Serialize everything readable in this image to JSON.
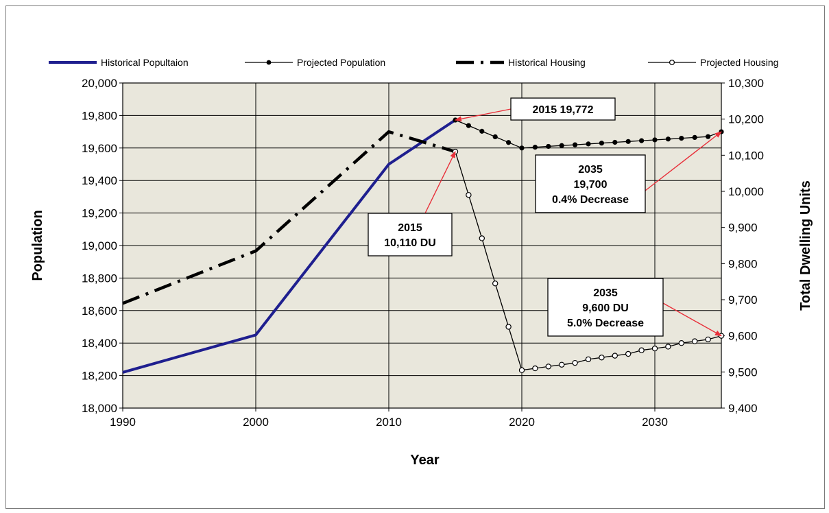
{
  "chart_data": {
    "type": "line",
    "xlabel": "Year",
    "ylabel_left": "Population",
    "ylabel_right": "Total Dwelling Units",
    "xlim": [
      1990,
      2035
    ],
    "xticks": [
      1990,
      2000,
      2010,
      2020,
      2030
    ],
    "ylim_left": [
      18000,
      20000
    ],
    "yticks_left": [
      "18,000",
      "18,200",
      "18,400",
      "18,600",
      "18,800",
      "19,000",
      "19,200",
      "19,400",
      "19,600",
      "19,800",
      "20,000"
    ],
    "ylim_right": [
      9400,
      10300
    ],
    "yticks_right": [
      "9,400",
      "9,500",
      "9,600",
      "9,700",
      "9,800",
      "9,900",
      "10,000",
      "10,100",
      "10,200",
      "10,300"
    ],
    "grid": true,
    "legend_position": "top",
    "series": [
      {
        "name": "Historical Popultaion",
        "axis": "left",
        "color": "#1f1f8f",
        "style": "solid-thick",
        "x": [
          1990,
          2000,
          2010,
          2015
        ],
        "y": [
          18220,
          18450,
          19500,
          19772
        ]
      },
      {
        "name": "Projected Population",
        "axis": "left",
        "color": "#000000",
        "style": "thin-filled-dots",
        "x": [
          2015,
          2016,
          2017,
          2018,
          2019,
          2020,
          2021,
          2022,
          2023,
          2024,
          2025,
          2026,
          2027,
          2028,
          2029,
          2030,
          2031,
          2032,
          2033,
          2034,
          2035
        ],
        "y": [
          19772,
          19738,
          19703,
          19669,
          19634,
          19600,
          19605,
          19610,
          19615,
          19620,
          19625,
          19630,
          19635,
          19640,
          19645,
          19650,
          19655,
          19660,
          19665,
          19670,
          19700
        ]
      },
      {
        "name": "Historical Housing",
        "axis": "right",
        "color": "#000000",
        "style": "dash-dot-thick",
        "x": [
          1990,
          2000,
          2010,
          2015
        ],
        "y": [
          9690,
          9835,
          10165,
          10110
        ]
      },
      {
        "name": "Projected Housing",
        "axis": "right",
        "color": "#000000",
        "style": "thin-open-circles",
        "x": [
          2015,
          2016,
          2017,
          2018,
          2019,
          2020,
          2021,
          2022,
          2023,
          2024,
          2025,
          2026,
          2027,
          2028,
          2029,
          2030,
          2031,
          2032,
          2033,
          2034,
          2035
        ],
        "y": [
          10110,
          9990,
          9870,
          9745,
          9625,
          9505,
          9510,
          9515,
          9520,
          9525,
          9535,
          9540,
          9545,
          9550,
          9560,
          9565,
          9570,
          9580,
          9585,
          9590,
          9600
        ]
      }
    ],
    "annotations": [
      {
        "lines": [
          "2015 19,772"
        ],
        "target_x": 2015,
        "target_y": 19772,
        "axis": "left",
        "arrow": "#e8303a"
      },
      {
        "lines": [
          "2035",
          "19,700",
          "0.4% Decrease"
        ],
        "target_x": 2035,
        "target_y": 19700,
        "axis": "left",
        "arrow": "#e8303a"
      },
      {
        "lines": [
          "2015",
          "10,110 DU"
        ],
        "target_x": 2015,
        "target_y": 10110,
        "axis": "right",
        "arrow": "#e8303a"
      },
      {
        "lines": [
          "2035",
          "9,600 DU",
          "5.0% Decrease"
        ],
        "target_x": 2035,
        "target_y": 9600,
        "axis": "right",
        "arrow": "#e8303a"
      }
    ]
  }
}
